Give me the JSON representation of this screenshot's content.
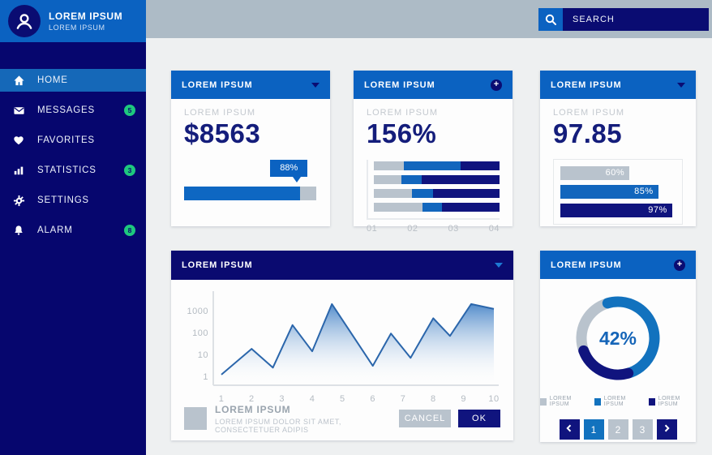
{
  "profile": {
    "name": "LOREM IPSUM",
    "subtitle": "LOREM IPSUM",
    "avatar_icon": "user-icon"
  },
  "search": {
    "placeholder": "SEARCH",
    "icon": "search-icon"
  },
  "sidebar": {
    "items": [
      {
        "label": "HOME",
        "icon": "home-icon",
        "active": true
      },
      {
        "label": "MESSAGES",
        "icon": "envelope-icon",
        "badge": "5"
      },
      {
        "label": "FAVORITES",
        "icon": "heart-icon"
      },
      {
        "label": "STATISTICS",
        "icon": "bar-chart-icon",
        "badge": "3"
      },
      {
        "label": "SETTINGS",
        "icon": "gear-icon"
      },
      {
        "label": "ALARM",
        "icon": "bell-icon",
        "badge": "8"
      }
    ]
  },
  "cards": {
    "revenue": {
      "header": "LOREM IPSUM",
      "header_icon": "chevron-down-icon",
      "subtitle": "LOREM IPSUM",
      "value": "$8563",
      "tooltip": "88%"
    },
    "stacked": {
      "header": "LOREM IPSUM",
      "header_icon": "plus-icon",
      "subtitle": "LOREM IPSUM",
      "value": "156%"
    },
    "hbars": {
      "header": "LOREM IPSUM",
      "header_icon": "chevron-down-icon",
      "subtitle": "LOREM IPSUM",
      "value": "97.85"
    },
    "trend": {
      "header": "LOREM IPSUM",
      "header_icon": "chevron-down-icon",
      "legend_title": "LOREM IPSUM",
      "legend_desc": "LOREM IPSUM DOLOR SIT AMET, CONSECTETUER ADIPIS",
      "cancel_label": "CANCEL",
      "ok_label": "OK"
    },
    "donut": {
      "header": "LOREM IPSUM",
      "header_icon": "plus-icon",
      "pagination": {
        "prev_icon": "chevron-left-icon",
        "next_icon": "chevron-right-icon",
        "pages": [
          "1",
          "2",
          "3"
        ],
        "active_index": 0
      }
    }
  },
  "icons": {
    "plus_glyph": "+"
  },
  "colors": {
    "accent_blue": "#0b62c1",
    "navy": "#10147e",
    "dark_header": "#0a0a70",
    "sidebar_navy": "#06066e",
    "active_item": "#1568b8",
    "topbar_gray": "#adbbc6",
    "bar_gray": "#b9c3cd",
    "series_blue": "#1266bd",
    "badge_green": "#1ec87e",
    "line_blue": "#2b66ab",
    "page_active": "#1272be"
  },
  "chart_data": [
    {
      "id": "progress-bar",
      "type": "bar",
      "orientation": "horizontal",
      "values": [
        88
      ],
      "max": 100,
      "annotation": "88%",
      "fill_color": "#0e67c2",
      "track_color": "#b9c3cd"
    },
    {
      "id": "stacked-bars",
      "type": "bar",
      "orientation": "horizontal",
      "stacked": true,
      "rows": 4,
      "xticks": [
        "01",
        "02",
        "03",
        "04"
      ],
      "series": [
        {
          "name": "gray",
          "color": "#b9c3cd",
          "values": [
            24,
            22,
            30,
            39
          ]
        },
        {
          "name": "blue",
          "color": "#1266bd",
          "values": [
            45,
            16,
            17,
            15
          ]
        },
        {
          "name": "navy",
          "color": "#10147e",
          "values": [
            31,
            62,
            53,
            46
          ]
        }
      ],
      "note": "values are percent of row width"
    },
    {
      "id": "percent-bars",
      "type": "bar",
      "orientation": "horizontal",
      "values": [
        60,
        85,
        97
      ],
      "max": 100,
      "labels": [
        "60%",
        "85%",
        "97%"
      ],
      "colors": [
        "#b9c3cd",
        "#1266bd",
        "#10147e"
      ]
    },
    {
      "id": "trend-line",
      "type": "area",
      "yscale": "log",
      "x": [
        1,
        2,
        2.7,
        3.35,
        4,
        4.65,
        6,
        6.6,
        7.25,
        8,
        8.55,
        9.25,
        10
      ],
      "y": [
        1.2,
        18,
        2.5,
        220,
        14,
        2000,
        3,
        90,
        7,
        450,
        70,
        2000,
        1200
      ],
      "xticks": [
        "1",
        "2",
        "3",
        "4",
        "5",
        "6",
        "7",
        "8",
        "9",
        "10"
      ],
      "yticks": [
        "1",
        "10",
        "100",
        "1000"
      ],
      "ylim": [
        1,
        3000
      ],
      "grid": false,
      "line_color": "#2b66ab",
      "fill_gradient": [
        "#4a86c8",
        "#ffffff"
      ]
    },
    {
      "id": "donut",
      "type": "pie",
      "donut": true,
      "center_label": "42%",
      "start_angle_deg": 250,
      "slices": [
        {
          "label": "LOREM IPSUM",
          "color": "#b9c3cd",
          "percent": 26
        },
        {
          "label": "LOREM IPSUM",
          "color": "#1272be",
          "percent": 50
        },
        {
          "label": "LOREM IPSUM",
          "color": "#10147e",
          "percent": 24
        }
      ]
    }
  ]
}
